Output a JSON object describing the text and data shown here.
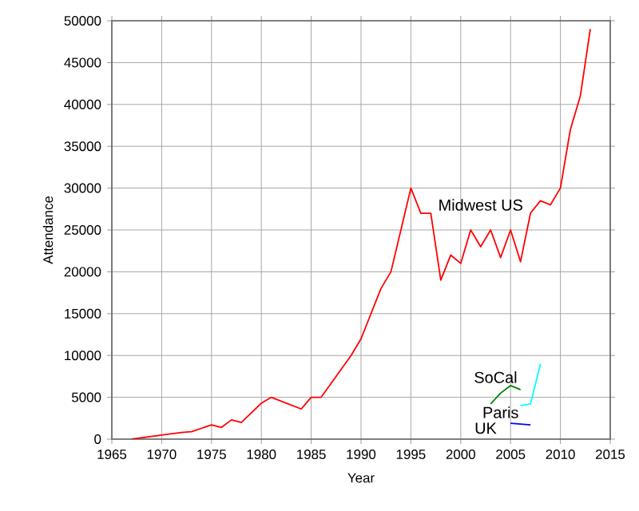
{
  "chart_data": {
    "type": "line",
    "xlabel": "Year",
    "ylabel": "Attendance",
    "xlim": [
      1965,
      2015
    ],
    "xticks": [
      1965,
      1970,
      1975,
      1980,
      1985,
      1990,
      1995,
      2000,
      2005,
      2010,
      2015
    ],
    "ylim": [
      0,
      50000
    ],
    "yticks": [
      0,
      5000,
      10000,
      15000,
      20000,
      25000,
      30000,
      35000,
      40000,
      45000,
      50000
    ],
    "grid": true,
    "series": [
      {
        "name": "Midwest US",
        "color": "#ff0000",
        "x": [
          1967,
          1970,
          1972,
          1973,
          1975,
          1976,
          1977,
          1978,
          1980,
          1981,
          1984,
          1985,
          1986,
          1989,
          1990,
          1992,
          1993,
          1995,
          1996,
          1997,
          1998,
          1999,
          2000,
          2001,
          2002,
          2003,
          2004,
          2005,
          2006,
          2007,
          2008,
          2009,
          2010,
          2011,
          2012,
          2013
        ],
        "values": [
          0,
          500,
          800,
          900,
          1700,
          1400,
          2300,
          2000,
          4300,
          5000,
          3600,
          5000,
          5000,
          10000,
          12000,
          18000,
          20000,
          30000,
          27000,
          27000,
          19000,
          22000,
          21000,
          25000,
          23000,
          25000,
          21700,
          25000,
          21200,
          27000,
          28500,
          28000,
          30000,
          37000,
          41000,
          49000
        ]
      },
      {
        "name": "SoCal",
        "color": "#008000",
        "x": [
          2003,
          2004,
          2005,
          2006
        ],
        "values": [
          4200,
          5500,
          6400,
          5900
        ]
      },
      {
        "name": "Paris",
        "color": "#00ffff",
        "x": [
          2006,
          2007,
          2008
        ],
        "values": [
          4000,
          4200,
          9000
        ]
      },
      {
        "name": "UK",
        "color": "#0000ff",
        "x": [
          2005,
          2007
        ],
        "values": [
          1900,
          1700
        ]
      }
    ]
  }
}
